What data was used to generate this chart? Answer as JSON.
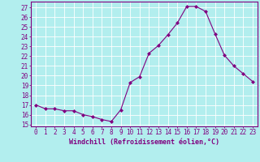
{
  "x": [
    0,
    1,
    2,
    3,
    4,
    5,
    6,
    7,
    8,
    9,
    10,
    11,
    12,
    13,
    14,
    15,
    16,
    17,
    18,
    19,
    20,
    21,
    22,
    23
  ],
  "y": [
    17.0,
    16.6,
    16.6,
    16.4,
    16.4,
    16.0,
    15.8,
    15.5,
    15.3,
    16.5,
    19.3,
    19.9,
    22.3,
    23.1,
    24.2,
    25.4,
    27.1,
    27.1,
    26.6,
    24.3,
    22.1,
    21.0,
    20.2,
    19.4
  ],
  "line_color": "#800080",
  "marker": "D",
  "marker_size": 2,
  "bg_color": "#b2eeee",
  "grid_color": "#ffffff",
  "xlabel": "Windchill (Refroidissement éolien,°C)",
  "xlabel_color": "#800080",
  "ylabel_ticks": [
    15,
    16,
    17,
    18,
    19,
    20,
    21,
    22,
    23,
    24,
    25,
    26,
    27
  ],
  "ylim": [
    14.8,
    27.6
  ],
  "xlim": [
    -0.5,
    23.5
  ],
  "tick_color": "#800080",
  "tick_fontsize": 5.5,
  "xlabel_fontsize": 6.0,
  "spine_color": "#800080",
  "linewidth": 0.8
}
